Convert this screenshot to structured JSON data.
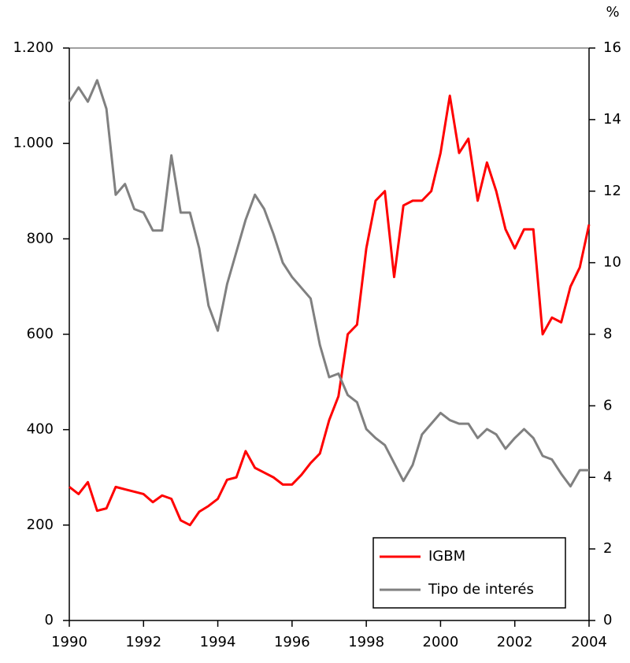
{
  "chart_data": {
    "type": "line",
    "y2label": "%",
    "x": [
      1990,
      1990.25,
      1990.5,
      1990.75,
      1991,
      1991.25,
      1991.5,
      1991.75,
      1992,
      1992.25,
      1992.5,
      1992.75,
      1993,
      1993.25,
      1993.5,
      1993.75,
      1994,
      1994.25,
      1994.5,
      1994.75,
      1995,
      1995.25,
      1995.5,
      1995.75,
      1996,
      1996.25,
      1996.5,
      1996.75,
      1997,
      1997.25,
      1997.5,
      1997.75,
      1998,
      1998.25,
      1998.5,
      1998.75,
      1999,
      1999.25,
      1999.5,
      1999.75,
      2000,
      2000.25,
      2000.5,
      2000.75,
      2001,
      2001.25,
      2001.5,
      2001.75,
      2002,
      2002.25,
      2002.5,
      2002.75,
      2003,
      2003.25,
      2003.5,
      2003.75,
      2004
    ],
    "series": [
      {
        "name": "IGBM",
        "color": "#ff0000",
        "axis": "y",
        "values": [
          280,
          265,
          290,
          230,
          235,
          280,
          275,
          270,
          265,
          248,
          262,
          255,
          210,
          200,
          228,
          240,
          255,
          295,
          300,
          355,
          320,
          310,
          300,
          285,
          285,
          305,
          330,
          350,
          420,
          470,
          600,
          620,
          780,
          880,
          900,
          720,
          870,
          880,
          880,
          900,
          980,
          1100,
          980,
          1010,
          880,
          960,
          900,
          820,
          780,
          820,
          820,
          600,
          635,
          625,
          700,
          740,
          830
        ]
      },
      {
        "name": "Tipo de interés",
        "color": "#808080",
        "axis": "y2",
        "values": [
          14.5,
          14.9,
          14.5,
          15.1,
          14.3,
          11.9,
          12.2,
          11.5,
          11.4,
          10.9,
          10.9,
          13.0,
          11.4,
          11.4,
          10.4,
          8.8,
          8.1,
          9.4,
          10.3,
          11.2,
          11.9,
          11.5,
          10.8,
          10.0,
          9.6,
          9.3,
          9.0,
          7.7,
          6.8,
          6.9,
          6.3,
          6.1,
          5.35,
          5.1,
          4.9,
          4.4,
          3.9,
          4.35,
          5.2,
          5.5,
          5.8,
          5.6,
          5.5,
          5.5,
          5.1,
          5.35,
          5.2,
          4.8,
          5.1,
          5.35,
          5.1,
          4.6,
          4.5,
          4.1,
          3.75,
          4.2,
          4.2
        ]
      }
    ],
    "xlim": [
      1990,
      2004
    ],
    "xticks": [
      1990,
      1992,
      1994,
      1996,
      1998,
      2000,
      2002,
      2004
    ],
    "ylim": [
      0,
      1200
    ],
    "yticks": [
      0,
      200,
      400,
      600,
      800,
      {
        "value": 1000,
        "label": "1.000"
      },
      {
        "value": 1200,
        "label": "1.200"
      }
    ],
    "y2lim": [
      0,
      16
    ],
    "y2ticks": [
      0,
      2,
      4,
      6,
      8,
      10,
      12,
      14,
      16
    ],
    "legend": "lower right"
  }
}
